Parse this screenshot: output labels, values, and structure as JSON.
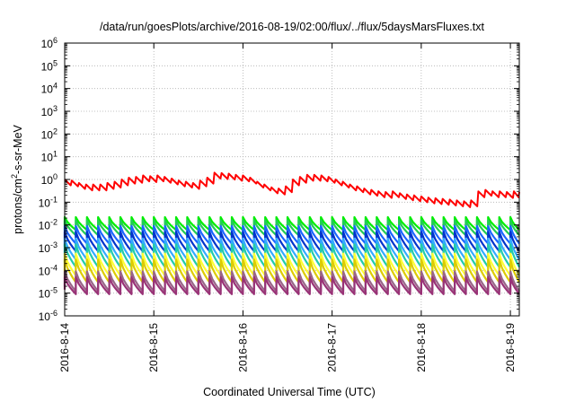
{
  "chart_data": {
    "type": "line",
    "title": "/data/run/goesPlots/archive/2016-08-19/02:00/flux/../flux/5daysMarsFluxes.txt",
    "xlabel": "Coordinated Universal Time (UTC)",
    "ylabel_parts": {
      "main": "protons/cm",
      "sup": "2",
      "tail": "-s-sr-MeV"
    },
    "y_scale": "log",
    "ylim": [
      1e-06,
      1000000.0
    ],
    "y_tick_exponents": [
      -6,
      -5,
      -4,
      -3,
      -2,
      -1,
      0,
      1,
      2,
      3,
      4,
      5,
      6
    ],
    "y_tick_base": "10",
    "x_ticks": [
      "2016-8-14",
      "2016-8-15",
      "2016-8-16",
      "2016-8-17",
      "2016-8-18",
      "2016-8-19"
    ],
    "xlim_days": [
      0,
      5.1
    ],
    "grid": true,
    "sawtooth_period_days": 0.125,
    "series": [
      {
        "color": "#ff0000",
        "style": "sawtooth-envelope",
        "x_days": [
          0.0,
          0.08,
          0.16,
          0.24,
          0.32,
          0.4,
          0.48,
          0.56,
          0.64,
          0.72,
          0.8,
          0.88,
          0.96,
          1.04,
          1.12,
          1.2,
          1.28,
          1.36,
          1.44,
          1.52,
          1.6,
          1.68,
          1.76,
          1.84,
          1.92,
          2.0,
          2.08,
          2.16,
          2.24,
          2.32,
          2.4,
          2.48,
          2.56,
          2.64,
          2.72,
          2.8,
          2.88,
          2.96,
          3.04,
          3.12,
          3.2,
          3.28,
          3.36,
          3.44,
          3.52,
          3.6,
          3.68,
          3.76,
          3.84,
          3.92,
          4.0,
          4.08,
          4.16,
          4.24,
          4.32,
          4.4,
          4.48,
          4.56,
          4.64,
          4.72,
          4.8,
          4.88,
          4.96,
          5.04,
          5.1
        ],
        "peaks": [
          1.0,
          0.9,
          0.7,
          0.6,
          0.6,
          0.6,
          0.7,
          0.8,
          1.0,
          1.2,
          1.3,
          1.5,
          1.4,
          1.5,
          1.3,
          1.1,
          0.9,
          0.8,
          0.7,
          0.9,
          1.2,
          2.0,
          1.9,
          1.8,
          1.6,
          1.5,
          1.2,
          0.8,
          0.6,
          0.45,
          0.4,
          0.5,
          1.0,
          1.3,
          1.6,
          1.6,
          1.5,
          1.3,
          1.0,
          0.8,
          0.6,
          0.5,
          0.4,
          0.35,
          0.3,
          0.28,
          0.3,
          0.25,
          0.22,
          0.2,
          0.18,
          0.16,
          0.15,
          0.14,
          0.13,
          0.12,
          0.11,
          0.12,
          0.3,
          0.35,
          0.3,
          0.3,
          0.28,
          0.3,
          0.28
        ],
        "dip_factor": 0.55
      },
      {
        "color": "#00ee00",
        "style": "sawtooth",
        "peak": 0.022,
        "trough": 0.006
      },
      {
        "color": "#22cc55",
        "style": "sawtooth",
        "peak": 0.016,
        "trough": 0.0035
      },
      {
        "color": "#1a66ff",
        "style": "sawtooth",
        "peak": 0.009,
        "trough": 0.0015
      },
      {
        "color": "#0033cc",
        "style": "sawtooth",
        "peak": 0.005,
        "trough": 0.0007
      },
      {
        "color": "#33aaff",
        "style": "sawtooth",
        "peak": 0.0025,
        "trough": 0.0003
      },
      {
        "color": "#22ccaa",
        "style": "sawtooth",
        "peak": 0.0014,
        "trough": 0.00014
      },
      {
        "color": "#ffff33",
        "style": "sawtooth",
        "peak": 0.00055,
        "trough": 6e-05
      },
      {
        "color": "#ddcc00",
        "style": "sawtooth",
        "peak": 0.0003,
        "trough": 3e-05
      },
      {
        "color": "#996688",
        "style": "sawtooth",
        "peak": 9e-05,
        "trough": 1.2e-05
      },
      {
        "color": "#993377",
        "style": "sawtooth",
        "peak": 5e-05,
        "trough": 9e-06
      }
    ]
  }
}
